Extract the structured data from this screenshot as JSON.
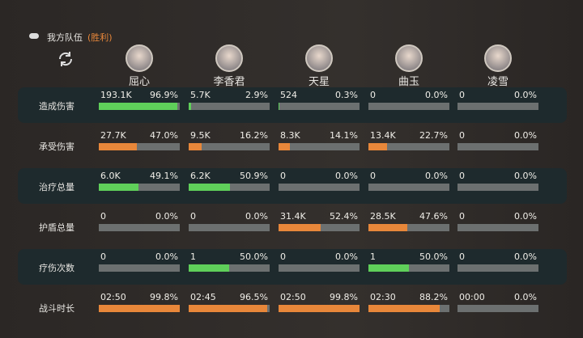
{
  "header": {
    "title": "我方队伍",
    "result": "(胜利)"
  },
  "characters": [
    "屈心",
    "李香君",
    "天星",
    "曲玉",
    "凌雪"
  ],
  "table": {
    "rows": [
      {
        "label": "造成伤害",
        "color": "#5fcf5a",
        "cells": [
          {
            "value": "193.1K",
            "pct": 96.9,
            "pct_label": "96.9%"
          },
          {
            "value": "5.7K",
            "pct": 2.9,
            "pct_label": "2.9%"
          },
          {
            "value": "524",
            "pct": 0.3,
            "pct_label": "0.3%"
          },
          {
            "value": "0",
            "pct": 0,
            "pct_label": "0.0%"
          },
          {
            "value": "0",
            "pct": 0,
            "pct_label": "0.0%"
          }
        ]
      },
      {
        "label": "承受伤害",
        "color": "#e8873a",
        "cells": [
          {
            "value": "27.7K",
            "pct": 47.0,
            "pct_label": "47.0%"
          },
          {
            "value": "9.5K",
            "pct": 16.2,
            "pct_label": "16.2%"
          },
          {
            "value": "8.3K",
            "pct": 14.1,
            "pct_label": "14.1%"
          },
          {
            "value": "13.4K",
            "pct": 22.7,
            "pct_label": "22.7%"
          },
          {
            "value": "0",
            "pct": 0,
            "pct_label": "0.0%"
          }
        ]
      },
      {
        "label": "治疗总量",
        "color": "#5fcf5a",
        "cells": [
          {
            "value": "6.0K",
            "pct": 49.1,
            "pct_label": "49.1%"
          },
          {
            "value": "6.2K",
            "pct": 50.9,
            "pct_label": "50.9%"
          },
          {
            "value": "0",
            "pct": 0,
            "pct_label": "0.0%"
          },
          {
            "value": "0",
            "pct": 0,
            "pct_label": "0.0%"
          },
          {
            "value": "0",
            "pct": 0,
            "pct_label": "0.0%"
          }
        ]
      },
      {
        "label": "护盾总量",
        "color": "#e8873a",
        "cells": [
          {
            "value": "0",
            "pct": 0,
            "pct_label": "0.0%"
          },
          {
            "value": "0",
            "pct": 0,
            "pct_label": "0.0%"
          },
          {
            "value": "31.4K",
            "pct": 52.4,
            "pct_label": "52.4%"
          },
          {
            "value": "28.5K",
            "pct": 47.6,
            "pct_label": "47.6%"
          },
          {
            "value": "0",
            "pct": 0,
            "pct_label": "0.0%"
          }
        ]
      },
      {
        "label": "疗伤次数",
        "color": "#5fcf5a",
        "cells": [
          {
            "value": "0",
            "pct": 0,
            "pct_label": "0.0%"
          },
          {
            "value": "1",
            "pct": 50.0,
            "pct_label": "50.0%"
          },
          {
            "value": "0",
            "pct": 0,
            "pct_label": "0.0%"
          },
          {
            "value": "1",
            "pct": 50.0,
            "pct_label": "50.0%"
          },
          {
            "value": "0",
            "pct": 0,
            "pct_label": "0.0%"
          }
        ]
      },
      {
        "label": "战斗时长",
        "color": "#e8873a",
        "cells": [
          {
            "value": "02:50",
            "pct": 99.8,
            "pct_label": "99.8%"
          },
          {
            "value": "02:45",
            "pct": 96.5,
            "pct_label": "96.5%"
          },
          {
            "value": "02:50",
            "pct": 99.8,
            "pct_label": "99.8%"
          },
          {
            "value": "02:30",
            "pct": 88.2,
            "pct_label": "88.2%"
          },
          {
            "value": "00:00",
            "pct": 0,
            "pct_label": "0.0%"
          }
        ]
      }
    ]
  }
}
